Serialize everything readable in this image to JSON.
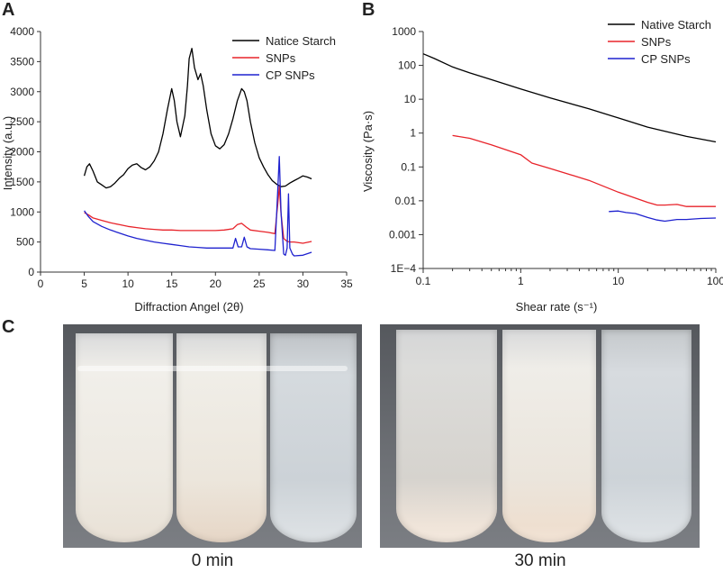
{
  "panels": {
    "a": "A",
    "b": "B",
    "c": "C"
  },
  "chart_data": [
    {
      "type": "line",
      "panel": "A",
      "xlabel": "Diffraction Angel (2θ)",
      "ylabel": "Intensity (a.u.)",
      "xlim": [
        0,
        35
      ],
      "ylim": [
        0,
        4000
      ],
      "xticks": [
        "0",
        "5",
        "10",
        "15",
        "20",
        "25",
        "30",
        "35"
      ],
      "yticks": [
        "0",
        "500",
        "1000",
        "1500",
        "2000",
        "2500",
        "3000",
        "3500",
        "4000"
      ],
      "legend_position": "top-right",
      "series": [
        {
          "name": "Natice Starch",
          "color": "#000000",
          "x": [
            5,
            5.3,
            5.6,
            6,
            6.5,
            7,
            7.5,
            8,
            8.5,
            9,
            9.5,
            10,
            10.5,
            11,
            11.5,
            12,
            12.5,
            13,
            13.5,
            14,
            14.5,
            15,
            15.3,
            15.6,
            16,
            16.5,
            16.8,
            17,
            17.3,
            17.6,
            18,
            18.3,
            18.6,
            19,
            19.5,
            20,
            20.5,
            21,
            21.5,
            22,
            22.5,
            23,
            23.3,
            23.6,
            24,
            24.5,
            25,
            25.5,
            26,
            26.5,
            27,
            27.5,
            28,
            28.5,
            29,
            29.5,
            30,
            30.5,
            31
          ],
          "y": [
            1600,
            1750,
            1800,
            1680,
            1500,
            1450,
            1400,
            1420,
            1480,
            1560,
            1620,
            1720,
            1780,
            1800,
            1740,
            1700,
            1750,
            1850,
            2000,
            2300,
            2700,
            3050,
            2850,
            2500,
            2250,
            2600,
            3100,
            3550,
            3720,
            3400,
            3200,
            3300,
            3100,
            2700,
            2300,
            2100,
            2050,
            2120,
            2300,
            2550,
            2850,
            3050,
            3000,
            2850,
            2500,
            2150,
            1900,
            1750,
            1620,
            1520,
            1460,
            1420,
            1430,
            1480,
            1520,
            1560,
            1600,
            1580,
            1550
          ]
        },
        {
          "name": "SNPs",
          "color": "#e8232a",
          "x": [
            5,
            5.5,
            6,
            7,
            8,
            9,
            10,
            11,
            12,
            13,
            14,
            15,
            16,
            17,
            18,
            19,
            20,
            21,
            22,
            22.5,
            23,
            23.5,
            24,
            25,
            26,
            26.8,
            27.1,
            27.3,
            27.5,
            27.8,
            28.2,
            28.6,
            29,
            30,
            31
          ],
          "y": [
            990,
            950,
            900,
            860,
            820,
            790,
            760,
            740,
            720,
            710,
            700,
            700,
            690,
            690,
            690,
            690,
            690,
            700,
            720,
            790,
            810,
            750,
            700,
            680,
            660,
            640,
            1100,
            1420,
            980,
            560,
            510,
            500,
            500,
            480,
            510
          ]
        },
        {
          "name": "CP SNPs",
          "color": "#1f22cf",
          "x": [
            5,
            5.5,
            6,
            7,
            8,
            9,
            10,
            11,
            12,
            13,
            14,
            15,
            16,
            17,
            18,
            19,
            20,
            21,
            22,
            22.3,
            22.6,
            23,
            23.3,
            23.6,
            24,
            25,
            26,
            26.8,
            27.1,
            27.3,
            27.5,
            27.8,
            28,
            28.2,
            28.35,
            28.5,
            28.8,
            29,
            30,
            31
          ],
          "y": [
            1020,
            920,
            840,
            760,
            700,
            650,
            600,
            560,
            530,
            500,
            480,
            460,
            440,
            420,
            410,
            400,
            400,
            400,
            400,
            560,
            420,
            420,
            580,
            420,
            390,
            380,
            370,
            360,
            1300,
            1920,
            1000,
            300,
            280,
            400,
            1300,
            400,
            300,
            270,
            280,
            330
          ]
        }
      ]
    },
    {
      "type": "line",
      "panel": "B",
      "xlabel": "Shear rate (s⁻¹)",
      "ylabel": "Viscosity (Pa·s)",
      "xscale": "log",
      "yscale": "log",
      "xlim": [
        0.1,
        100
      ],
      "ylim": [
        0.0001,
        1000
      ],
      "xticks": [
        "0.1",
        "1",
        "10",
        "100"
      ],
      "yticks": [
        "1E−4",
        "0.001",
        "0.01",
        "0.1",
        "1",
        "10",
        "100",
        "1000"
      ],
      "legend_position": "top-right",
      "series": [
        {
          "name": "Native Starch",
          "color": "#000000",
          "x": [
            0.1,
            0.13,
            0.2,
            0.3,
            0.5,
            1,
            2,
            5,
            10,
            20,
            50,
            100
          ],
          "y": [
            220,
            160,
            90,
            60,
            38,
            20,
            11,
            5.2,
            2.8,
            1.5,
            0.8,
            0.55
          ]
        },
        {
          "name": "SNPs",
          "color": "#e8232a",
          "x": [
            0.2,
            0.3,
            0.5,
            1,
            1.3,
            2,
            5,
            10,
            20,
            25,
            30,
            40,
            50,
            100
          ],
          "y": [
            0.85,
            0.7,
            0.45,
            0.23,
            0.13,
            0.09,
            0.04,
            0.018,
            0.009,
            0.0075,
            0.0075,
            0.0078,
            0.0068,
            0.0068
          ]
        },
        {
          "name": "CP SNPs",
          "color": "#1f22cf",
          "x": [
            8,
            10,
            12,
            15,
            20,
            25,
            30,
            40,
            50,
            70,
            100
          ],
          "y": [
            0.0048,
            0.005,
            0.0045,
            0.0042,
            0.0032,
            0.0027,
            0.0025,
            0.0028,
            0.0028,
            0.003,
            0.0031
          ]
        }
      ]
    }
  ],
  "photos": {
    "left_caption": "0 min",
    "right_caption": "30 min",
    "colors": {
      "backdrop": "#6b6e73",
      "turbid": "#eeebe4",
      "clear": "#c9d0d6"
    }
  }
}
